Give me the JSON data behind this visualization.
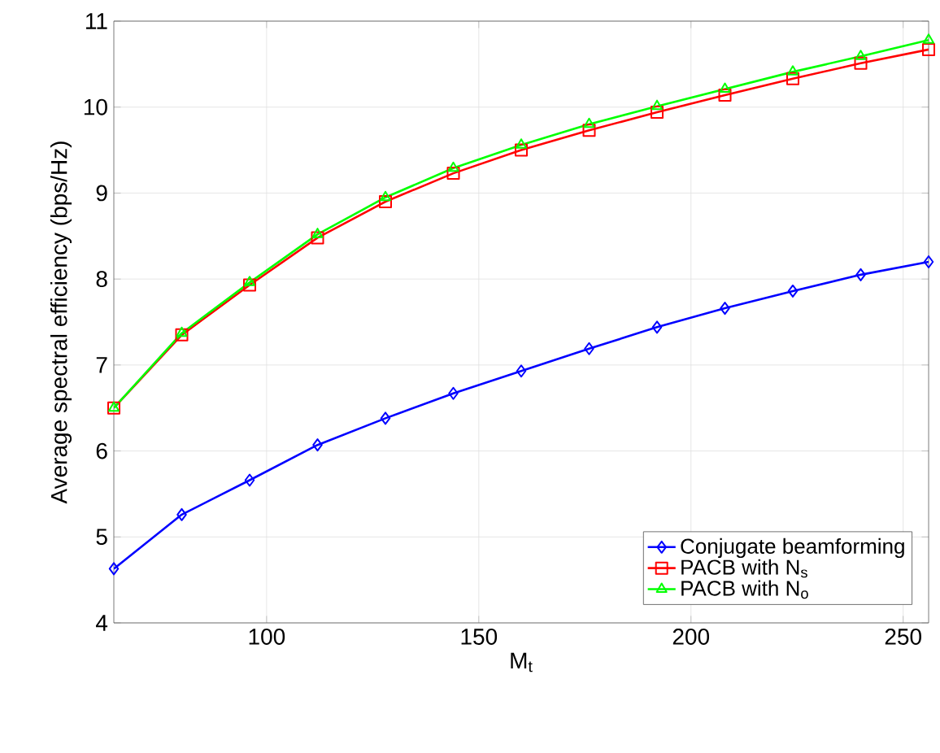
{
  "chart_data": {
    "type": "line",
    "xlabel": "M$_{t}$",
    "ylabel": "Average spectral efficiency (bps/Hz)",
    "x": [
      64,
      80,
      96,
      112,
      128,
      144,
      160,
      176,
      192,
      208,
      224,
      240,
      256
    ],
    "series": [
      {
        "name": "Conjugate beamforming",
        "color": "#0000ff",
        "marker": "diamond",
        "values": [
          4.63,
          5.26,
          5.66,
          6.07,
          6.38,
          6.67,
          6.93,
          7.19,
          7.44,
          7.66,
          7.86,
          8.05,
          8.2
        ]
      },
      {
        "name": "PACB with N$_{s}$",
        "color": "#ff0000",
        "marker": "square",
        "values": [
          6.5,
          7.35,
          7.93,
          8.48,
          8.9,
          9.23,
          9.5,
          9.73,
          9.94,
          10.14,
          10.33,
          10.51,
          10.67
        ]
      },
      {
        "name": "PACB with N$_{o}$",
        "color": "#00ff00",
        "marker": "triangle",
        "values": [
          6.5,
          7.37,
          7.96,
          8.52,
          8.95,
          9.29,
          9.56,
          9.8,
          10.01,
          10.21,
          10.41,
          10.59,
          10.78
        ]
      }
    ],
    "xlim": [
      64,
      256
    ],
    "ylim": [
      4,
      11
    ],
    "xticks": [
      100,
      150,
      200,
      250
    ],
    "yticks": [
      4,
      5,
      6,
      7,
      8,
      9,
      10,
      11
    ],
    "grid": true,
    "legend": "bottom right",
    "line_style": "solid"
  }
}
